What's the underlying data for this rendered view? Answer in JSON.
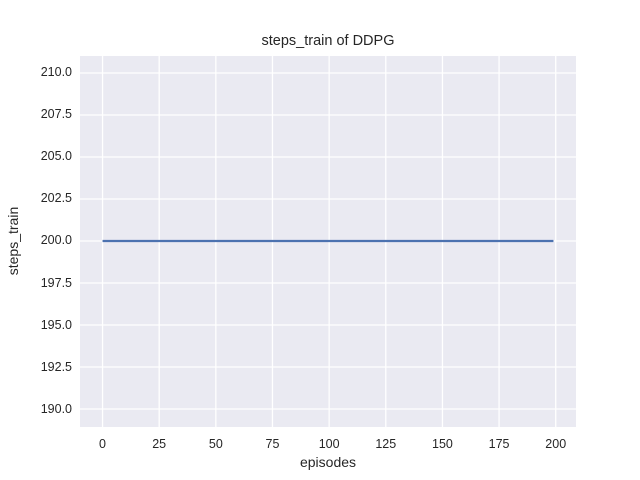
{
  "figure": {
    "title": "steps_train of DDPG",
    "xlabel": "episodes",
    "ylabel": "steps_train"
  },
  "chart_data": {
    "type": "line",
    "title": "steps_train of DDPG",
    "xlabel": "episodes",
    "ylabel": "steps_train",
    "grid": true,
    "legend": false,
    "style": "seaborn-darkgrid",
    "xlim": [
      -9.95,
      208.95
    ],
    "ylim": [
      188.93,
      211.01
    ],
    "xtick_labels": [
      "0",
      "25",
      "50",
      "75",
      "100",
      "125",
      "150",
      "175",
      "200"
    ],
    "ytick_labels": [
      "190.0",
      "192.5",
      "195.0",
      "197.5",
      "200.0",
      "202.5",
      "205.0",
      "207.5",
      "210.0"
    ],
    "series": [
      {
        "name": "steps_train",
        "color": "#4C72B0",
        "x": [
          0,
          199
        ],
        "y": [
          200,
          200
        ],
        "note": "constant value 200 for every episode 0-199"
      }
    ],
    "colors": {
      "axes_background": "#EAEAF2",
      "gridline": "#FFFFFF",
      "text": "#262626",
      "figure_background": "#FFFFFF"
    }
  }
}
